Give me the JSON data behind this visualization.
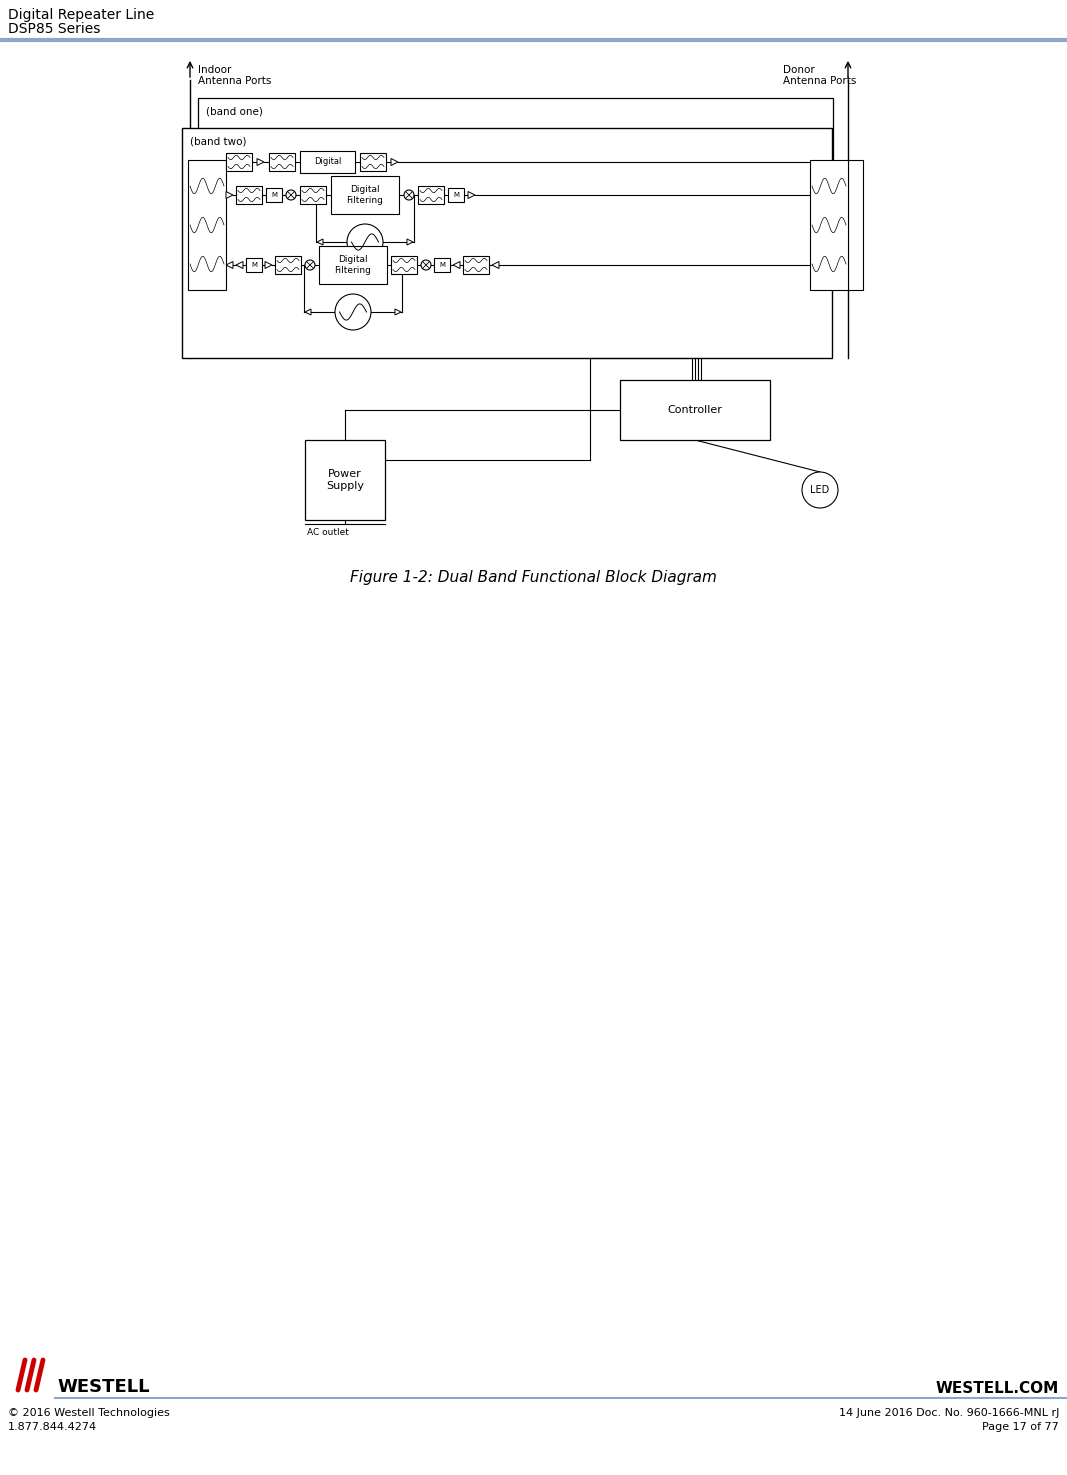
{
  "title_line1": "Digital Repeater Line",
  "title_line2": "DSP85 Series",
  "header_line_color": "#8ba7c7",
  "figure_caption": "Figure 1-2: Dual Band Functional Block Diagram",
  "footer_left_line1": "© 2016 Westell Technologies",
  "footer_left_line2": "1.877.844.4274",
  "footer_right_line1": "14 June 2016 Doc. No. 960-1666-MNL rJ",
  "footer_right_line2": "Page 17 of 77",
  "footer_center": "WESTELL.COM",
  "footer_brand": "WESTELL",
  "bg_color": "#ffffff"
}
